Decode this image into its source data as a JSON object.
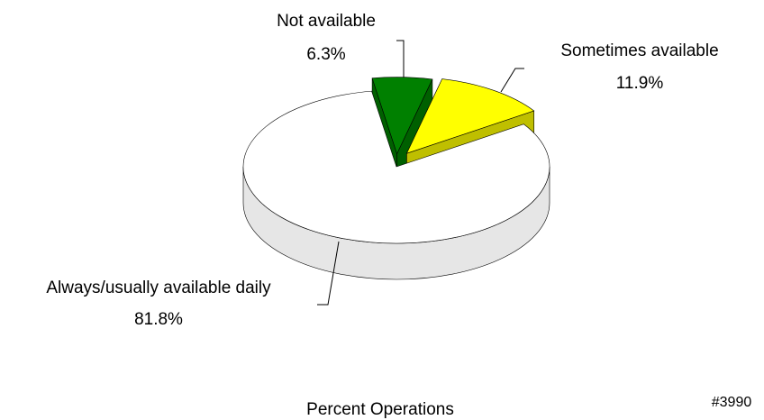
{
  "chart_data": {
    "type": "pie",
    "title": "Percent Operations",
    "annotation": "#3990",
    "categories": [
      "Not available",
      "Sometimes available",
      "Always/usually available daily"
    ],
    "values": [
      6.3,
      11.9,
      81.8
    ],
    "value_labels": [
      "6.3%",
      "11.9%",
      "81.8%"
    ],
    "colors": [
      "#008000",
      "#ffff00",
      "#ffffff"
    ]
  }
}
